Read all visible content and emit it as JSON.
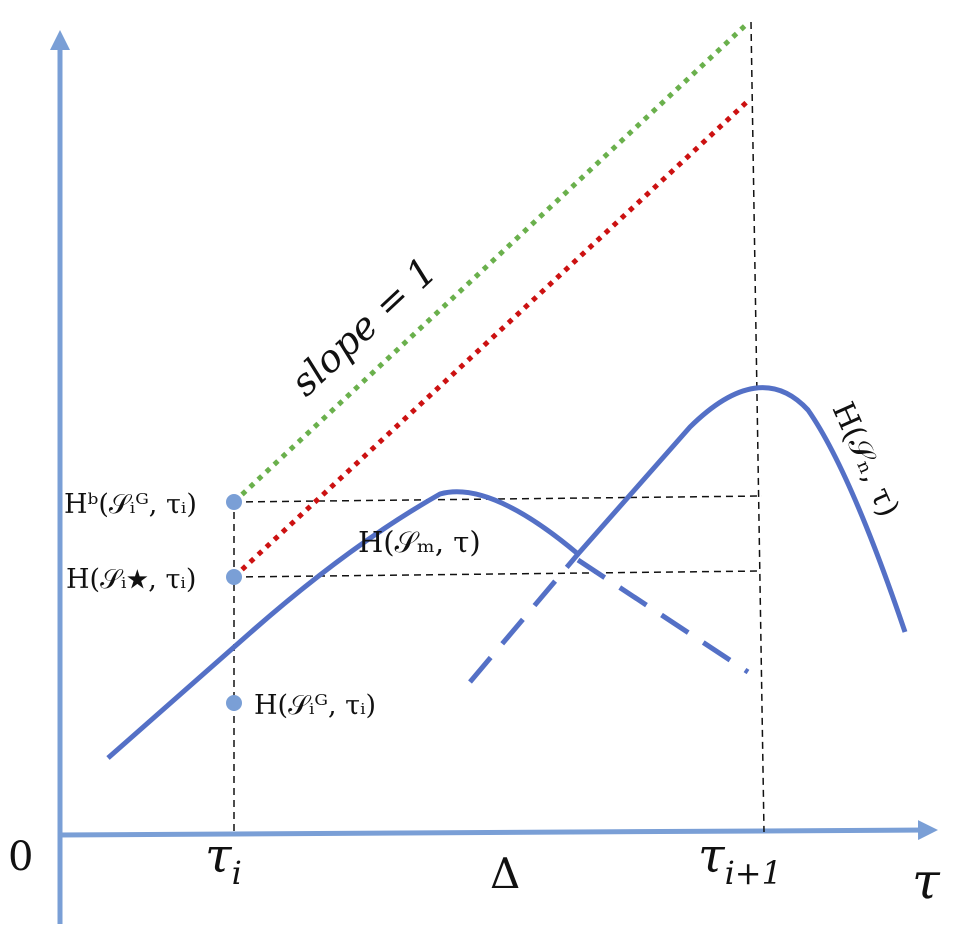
{
  "colors": {
    "axis": "#7a9fd6",
    "curve": "#5470c6",
    "point": "#7a9fd6",
    "green_dotted": "#6ab04c",
    "red_dotted": "#cc1111",
    "guide": "#111111"
  },
  "labels": {
    "origin": "0",
    "tau_i_base": "τ",
    "tau_i_sub": "i",
    "delta": "Δ",
    "tau_i1_base": "τ",
    "tau_i1_sub": "i+1",
    "tau_axis": "τ",
    "slope": "slope = 1",
    "hb": "Hᵇ(𝒮ᵢᴳ, τᵢ)",
    "hstar": "H(𝒮ᵢ★, τᵢ)",
    "hg": "H(𝒮ᵢᴳ, τᵢ)",
    "curve_m": "H(𝒮ₘ, τ)",
    "curve_n": "H(𝒮ₙ, τ)"
  }
}
